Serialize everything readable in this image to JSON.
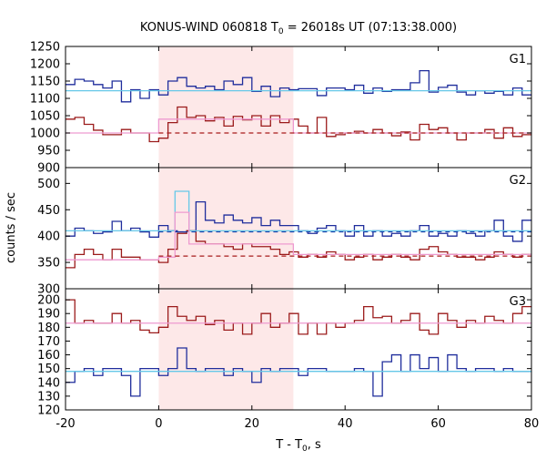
{
  "chart_data": {
    "type": "line",
    "title_main": "KONUS-WIND 060818 T",
    "title_sub": "0",
    "title_tail": " = 26018s UT (07:13:38.000)",
    "xlabel_main": "T - T",
    "xlabel_sub": "0",
    "xlabel_tail": ", s",
    "ylabel": "counts / sec",
    "xlim": [
      -20,
      80
    ],
    "xticks": [
      "-20",
      "0",
      "20",
      "40",
      "60",
      "80"
    ],
    "shaded_interval": [
      0,
      28.9
    ],
    "colors": {
      "shade": "#fde8e8",
      "blue": "#1f2d9c",
      "darkred": "#9b1b1b",
      "cyan": "#66c8e8",
      "pink": "#ee9ad0",
      "dashblue": "#1a3ea8",
      "dashred": "#a81c1c",
      "axis": "#000000"
    },
    "panels": [
      {
        "label": "G1",
        "ylim": [
          900,
          1250
        ],
        "yticks": [
          "900",
          "950",
          "1000",
          "1050",
          "1100",
          "1150",
          "1200",
          "1250"
        ],
        "bin_start": -20,
        "bin_width": 2,
        "series": [
          {
            "name": "blue",
            "color": "blue",
            "values": [
              1140,
              1155,
              1150,
              1140,
              1130,
              1150,
              1090,
              1125,
              1100,
              1125,
              1110,
              1150,
              1160,
              1135,
              1130,
              1135,
              1125,
              1150,
              1140,
              1160,
              1120,
              1135,
              1105,
              1130,
              1125,
              1128,
              1128,
              1108,
              1130,
              1130,
              1125,
              1138,
              1115,
              1130,
              1120,
              1125,
              1125,
              1145,
              1180,
              1118,
              1132,
              1138,
              1118,
              1110,
              1122,
              1115,
              1120,
              1110,
              1130,
              1110
            ]
          },
          {
            "name": "darkred",
            "color": "darkred",
            "values": [
              1040,
              1045,
              1025,
              1008,
              995,
              995,
              1010,
              1000,
              1000,
              975,
              985,
              1030,
              1075,
              1045,
              1050,
              1035,
              1045,
              1020,
              1048,
              1038,
              1050,
              1020,
              1050,
              1030,
              1040,
              1020,
              1000,
              1045,
              990,
              995,
              1000,
              1005,
              1000,
              1010,
              1000,
              992,
              1003,
              980,
              1025,
              1010,
              1015,
              1000,
              980,
              1000,
              1000,
              1010,
              985,
              1015,
              990,
              995
            ]
          },
          {
            "name": "pink-fit",
            "color": "pink",
            "steps": [
              [
                -20,
                0,
                1000
              ],
              [
                0,
                6,
                1040
              ],
              [
                6,
                28.9,
                1040
              ],
              [
                28.9,
                80,
                1000
              ]
            ]
          },
          {
            "name": "cyan-fit",
            "color": "cyan",
            "steps": [
              [
                -20,
                0,
                1122
              ],
              [
                0,
                28.9,
                1122
              ],
              [
                28.9,
                80,
                1122
              ]
            ]
          },
          {
            "name": "dashred",
            "color": "dashred",
            "dashed": true,
            "steps": [
              [
                0,
                80,
                1000
              ]
            ]
          }
        ]
      },
      {
        "label": "G2",
        "ylim": [
          300,
          530
        ],
        "yticks": [
          "300",
          "350",
          "400",
          "450",
          "500"
        ],
        "bin_start": -20,
        "bin_width": 2,
        "series": [
          {
            "name": "blue",
            "color": "blue",
            "values": [
              400,
              415,
              410,
              405,
              408,
              428,
              410,
              415,
              408,
              398,
              420,
              410,
              408,
              410,
              465,
              430,
              425,
              440,
              430,
              425,
              435,
              420,
              430,
              420,
              420,
              410,
              405,
              415,
              420,
              410,
              400,
              420,
              400,
              410,
              400,
              405,
              400,
              410,
              420,
              400,
              405,
              400,
              410,
              405,
              400,
              410,
              430,
              400,
              390,
              430
            ]
          },
          {
            "name": "darkred",
            "color": "darkred",
            "values": [
              340,
              365,
              375,
              365,
              355,
              375,
              360,
              360,
              355,
              355,
              350,
              375,
              405,
              410,
              390,
              385,
              385,
              380,
              375,
              385,
              380,
              380,
              375,
              365,
              370,
              360,
              365,
              360,
              370,
              365,
              355,
              360,
              365,
              355,
              360,
              365,
              360,
              355,
              375,
              380,
              370,
              365,
              360,
              360,
              355,
              360,
              370,
              365,
              360,
              365
            ]
          },
          {
            "name": "cyan-fit",
            "color": "cyan",
            "steps": [
              [
                -20,
                0,
                410
              ],
              [
                0,
                3.5,
                410
              ],
              [
                3.5,
                6.5,
                485
              ],
              [
                6.5,
                28.9,
                410
              ],
              [
                28.9,
                80,
                410
              ]
            ]
          },
          {
            "name": "pink-fit",
            "color": "pink",
            "steps": [
              [
                -20,
                0,
                355
              ],
              [
                0,
                3.5,
                360
              ],
              [
                3.5,
                6.5,
                445
              ],
              [
                6.5,
                28.9,
                385
              ],
              [
                28.9,
                80,
                365
              ]
            ]
          },
          {
            "name": "dashblue",
            "color": "dashblue",
            "dashed": true,
            "steps": [
              [
                0,
                80,
                408
              ]
            ]
          },
          {
            "name": "dashred",
            "color": "dashred",
            "dashed": true,
            "steps": [
              [
                0,
                80,
                362
              ]
            ]
          }
        ]
      },
      {
        "label": "G3",
        "ylim": [
          120,
          208
        ],
        "yticks": [
          "120",
          "130",
          "140",
          "150",
          "160",
          "170",
          "180",
          "190",
          "200"
        ],
        "bin_start": -20,
        "bin_width": 2,
        "series": [
          {
            "name": "darkred",
            "color": "darkred",
            "values": [
              200,
              183,
              185,
              183,
              183,
              190,
              183,
              185,
              178,
              176,
              180,
              195,
              188,
              185,
              188,
              182,
              185,
              178,
              183,
              175,
              183,
              190,
              180,
              183,
              190,
              175,
              183,
              175,
              183,
              180,
              183,
              185,
              195,
              187,
              188,
              183,
              185,
              190,
              178,
              175,
              190,
              185,
              180,
              185,
              183,
              188,
              185,
              183,
              190,
              195
            ]
          },
          {
            "name": "blue",
            "color": "blue",
            "values": [
              140,
              148,
              150,
              145,
              150,
              150,
              145,
              130,
              150,
              150,
              145,
              150,
              165,
              150,
              148,
              150,
              150,
              145,
              150,
              148,
              140,
              150,
              148,
              150,
              150,
              145,
              150,
              150,
              148,
              148,
              148,
              150,
              148,
              130,
              155,
              160,
              148,
              160,
              150,
              158,
              148,
              160,
              150,
              148,
              150,
              150,
              148,
              150,
              148,
              148
            ]
          },
          {
            "name": "pink-fit",
            "color": "pink",
            "steps": [
              [
                -20,
                80,
                183
              ]
            ]
          },
          {
            "name": "cyan-fit",
            "color": "cyan",
            "steps": [
              [
                -20,
                80,
                148
              ]
            ]
          }
        ]
      }
    ]
  }
}
